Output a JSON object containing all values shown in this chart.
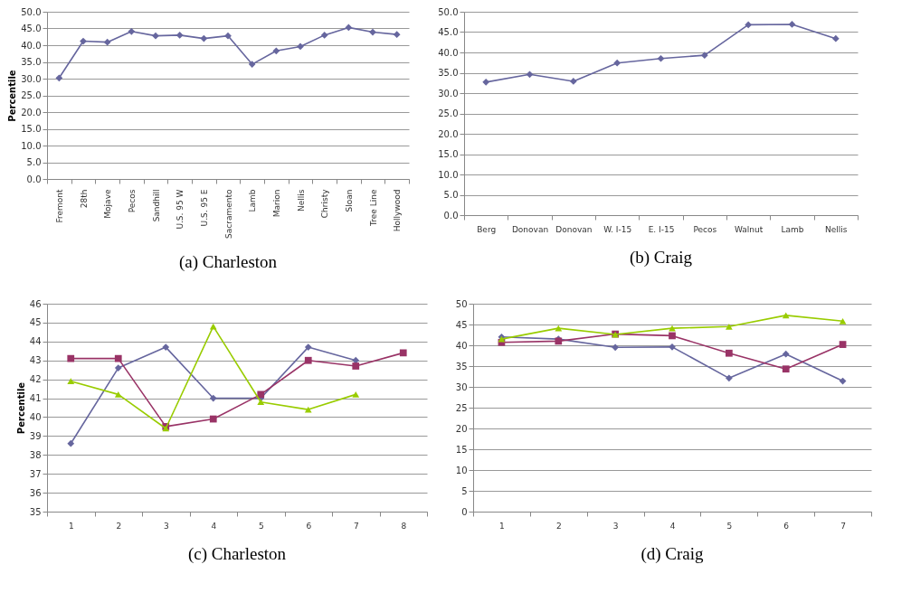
{
  "chart_data": [
    {
      "type": "line",
      "title": "(a)  Charleston",
      "ylabel": "Percentile",
      "categories": [
        "Fremont",
        "28th",
        "Mojave",
        "Pecos",
        "Sandhill",
        "U.S. 95 W",
        "U.S. 95 E",
        "Sacramento",
        "Lamb",
        "Marion",
        "Nellis",
        "Christy",
        "Sloan",
        "Tree Line",
        "Hollywood"
      ],
      "series": [
        {
          "color": "#66669e",
          "marker": "diamond",
          "values": [
            30.2,
            41.2,
            40.9,
            44.1,
            42.8,
            43.0,
            42.0,
            42.8,
            34.3,
            38.3,
            39.6,
            43.0,
            45.3,
            43.9,
            43.2
          ]
        }
      ],
      "ylim": [
        0,
        50
      ],
      "yticks": [
        {
          "value": 0,
          "label": "0.0"
        },
        {
          "value": 5,
          "label": "5.0"
        },
        {
          "value": 10,
          "label": "10.0"
        },
        {
          "value": 15,
          "label": "15.0"
        },
        {
          "value": 20,
          "label": "20.0"
        },
        {
          "value": 25,
          "label": "25.0"
        },
        {
          "value": 30,
          "label": "30.0"
        },
        {
          "value": 35,
          "label": "35.0"
        },
        {
          "value": 40,
          "label": "40.0"
        },
        {
          "value": 45,
          "label": "45.0"
        },
        {
          "value": 50,
          "label": "50.0"
        }
      ],
      "grid": "y"
    },
    {
      "type": "line",
      "title": "(b)  Craig",
      "categories": [
        "Berg",
        "Donovan",
        "Donovan",
        "W. I-15",
        "E. I-15",
        "Pecos",
        "Walnut",
        "Lamb",
        "Nellis"
      ],
      "series": [
        {
          "color": "#66669e",
          "marker": "diamond",
          "values": [
            32.7,
            34.6,
            32.9,
            37.4,
            38.5,
            39.3,
            46.8,
            46.9,
            43.4
          ]
        }
      ],
      "ylim": [
        0,
        50
      ],
      "yticks": [
        {
          "value": 0,
          "label": "0.0"
        },
        {
          "value": 5,
          "label": "5.0"
        },
        {
          "value": 10,
          "label": "10.0"
        },
        {
          "value": 15,
          "label": "15.0"
        },
        {
          "value": 20,
          "label": "20.0"
        },
        {
          "value": 25,
          "label": "25.0"
        },
        {
          "value": 30,
          "label": "30.0"
        },
        {
          "value": 35,
          "label": "35.0"
        },
        {
          "value": 40,
          "label": "40.0"
        },
        {
          "value": 45,
          "label": "45.0"
        },
        {
          "value": 50,
          "label": "50.0"
        }
      ],
      "grid": "y"
    },
    {
      "type": "line",
      "title": "(c)  Charleston",
      "ylabel": "Percentile",
      "categories": [
        "1",
        "2",
        "3",
        "4",
        "5",
        "6",
        "7",
        "8"
      ],
      "series": [
        {
          "color": "#66669e",
          "marker": "diamond",
          "values": [
            38.6,
            42.6,
            43.7,
            41.0,
            41.0,
            43.7,
            43.0,
            null
          ]
        },
        {
          "color": "#993366",
          "marker": "square",
          "values": [
            43.1,
            43.1,
            39.5,
            39.9,
            41.2,
            43.0,
            42.7,
            43.4
          ]
        },
        {
          "color": "#99cc00",
          "marker": "triangle",
          "values": [
            41.9,
            41.2,
            39.4,
            44.8,
            40.8,
            40.4,
            41.2,
            null
          ]
        }
      ],
      "ylim": [
        35,
        46
      ],
      "yticks": [
        35,
        36,
        37,
        38,
        39,
        40,
        41,
        42,
        43,
        44,
        45,
        46
      ],
      "grid": "y"
    },
    {
      "type": "line",
      "title": "(d)  Craig",
      "categories": [
        "1",
        "2",
        "3",
        "4",
        "5",
        "6",
        "7"
      ],
      "series": [
        {
          "color": "#66669e",
          "marker": "diamond",
          "values": [
            42.0,
            41.5,
            39.5,
            39.6,
            32.1,
            37.9,
            31.4
          ]
        },
        {
          "color": "#993366",
          "marker": "square",
          "values": [
            40.7,
            41.0,
            42.7,
            42.3,
            38.1,
            34.3,
            40.2
          ]
        },
        {
          "color": "#99cc00",
          "marker": "triangle",
          "values": [
            41.5,
            44.1,
            42.6,
            44.1,
            44.5,
            47.2,
            45.8
          ]
        }
      ],
      "ylim": [
        0,
        50
      ],
      "yticks": [
        0,
        5,
        10,
        15,
        20,
        25,
        30,
        35,
        40,
        45,
        50
      ],
      "grid": "y"
    }
  ]
}
